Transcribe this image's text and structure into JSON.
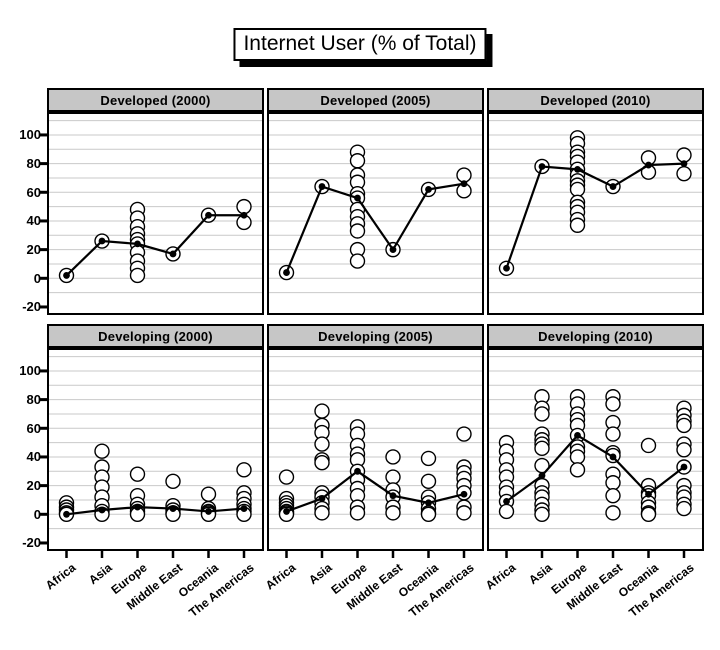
{
  "title": "Internet User (% of Total)",
  "colors": {
    "background": "#ffffff",
    "panel_header_bg": "#c6c6c6",
    "panel_border": "#000000",
    "gridline": "#c9c9c9",
    "series_line": "#000000",
    "scatter_stroke": "#000000",
    "scatter_fill": "#ffffff",
    "mean_dot": "#000000",
    "text": "#000000"
  },
  "chart_data": {
    "type": "scatter",
    "title": "Internet User (% of Total)",
    "layout": "trellis 2 rows x 3 cols, shared axes",
    "categories": [
      "Africa",
      "Asia",
      "Europe",
      "Middle East",
      "Oceania",
      "The Americas"
    ],
    "row_groups": [
      "Developed",
      "Developing"
    ],
    "col_groups": [
      "2000",
      "2005",
      "2010"
    ],
    "ylabel": "",
    "xlabel": "",
    "y_ticks": [
      100,
      80,
      60,
      40,
      20,
      0,
      -20
    ],
    "ylim": [
      -26,
      116
    ],
    "grid": true,
    "grid_step": 10,
    "legend": "none",
    "marks": "open circles = individual values; filled dots joined by line = group mean",
    "panels": [
      {
        "label": "Developed (2000)",
        "means": [
          2,
          26,
          24,
          17,
          44,
          44
        ],
        "scatter": [
          [
            2
          ],
          [
            26
          ],
          [
            48,
            42,
            36,
            31,
            27,
            24,
            18,
            12,
            7,
            2
          ],
          [
            17
          ],
          [
            44
          ],
          [
            50,
            39
          ]
        ]
      },
      {
        "label": "Developed (2005)",
        "means": [
          4,
          64,
          56,
          20,
          62,
          66
        ],
        "scatter": [
          [
            4
          ],
          [
            64
          ],
          [
            88,
            82,
            72,
            67,
            59,
            56,
            48,
            43,
            38,
            33,
            20,
            12
          ],
          [
            20
          ],
          [
            62
          ],
          [
            72,
            61
          ]
        ]
      },
      {
        "label": "Developed (2010)",
        "means": [
          7,
          78,
          76,
          64,
          79,
          80
        ],
        "scatter": [
          [
            7
          ],
          [
            78
          ],
          [
            98,
            94,
            88,
            85,
            81,
            76,
            72,
            68,
            65,
            62,
            53,
            50,
            46,
            41,
            37
          ],
          [
            64
          ],
          [
            84,
            74
          ],
          [
            86,
            73
          ]
        ]
      },
      {
        "label": "Developing (2000)",
        "means": [
          0,
          3,
          5,
          4,
          2,
          4
        ],
        "scatter": [
          [
            8,
            5,
            3,
            1,
            0
          ],
          [
            44,
            33,
            26,
            19,
            12,
            6,
            2,
            0
          ],
          [
            28,
            13,
            7,
            4,
            2,
            0
          ],
          [
            23,
            6,
            3,
            1,
            0
          ],
          [
            14,
            4,
            2,
            1,
            0
          ],
          [
            31,
            15,
            11,
            7,
            4,
            2,
            0
          ]
        ]
      },
      {
        "label": "Developing (2005)",
        "means": [
          2,
          11,
          30,
          13,
          8,
          14
        ],
        "scatter": [
          [
            26,
            11,
            8,
            6,
            4,
            2,
            1,
            0
          ],
          [
            72,
            62,
            57,
            49,
            38,
            36,
            15,
            12,
            8,
            4,
            1
          ],
          [
            61,
            56,
            48,
            42,
            38,
            30,
            24,
            18,
            13,
            5,
            1
          ],
          [
            40,
            26,
            17,
            12,
            5,
            1
          ],
          [
            39,
            23,
            12,
            8,
            4,
            1,
            0
          ],
          [
            56,
            33,
            29,
            25,
            20,
            15,
            5,
            1
          ]
        ]
      },
      {
        "label": "Developing (2010)",
        "means": [
          9,
          27,
          55,
          40,
          14,
          33
        ],
        "scatter": [
          [
            50,
            44,
            38,
            31,
            26,
            19,
            15,
            9,
            2
          ],
          [
            82,
            74,
            70,
            56,
            52,
            49,
            46,
            34,
            20,
            15,
            12,
            7,
            3,
            0
          ],
          [
            82,
            77,
            70,
            66,
            62,
            55,
            47,
            44,
            40,
            31
          ],
          [
            82,
            77,
            64,
            56,
            43,
            41,
            28,
            22,
            13,
            1
          ],
          [
            48,
            20,
            15,
            13,
            8,
            5,
            1,
            0
          ],
          [
            74,
            69,
            65,
            62,
            49,
            45,
            33,
            20,
            15,
            12,
            7,
            4
          ]
        ]
      }
    ]
  }
}
